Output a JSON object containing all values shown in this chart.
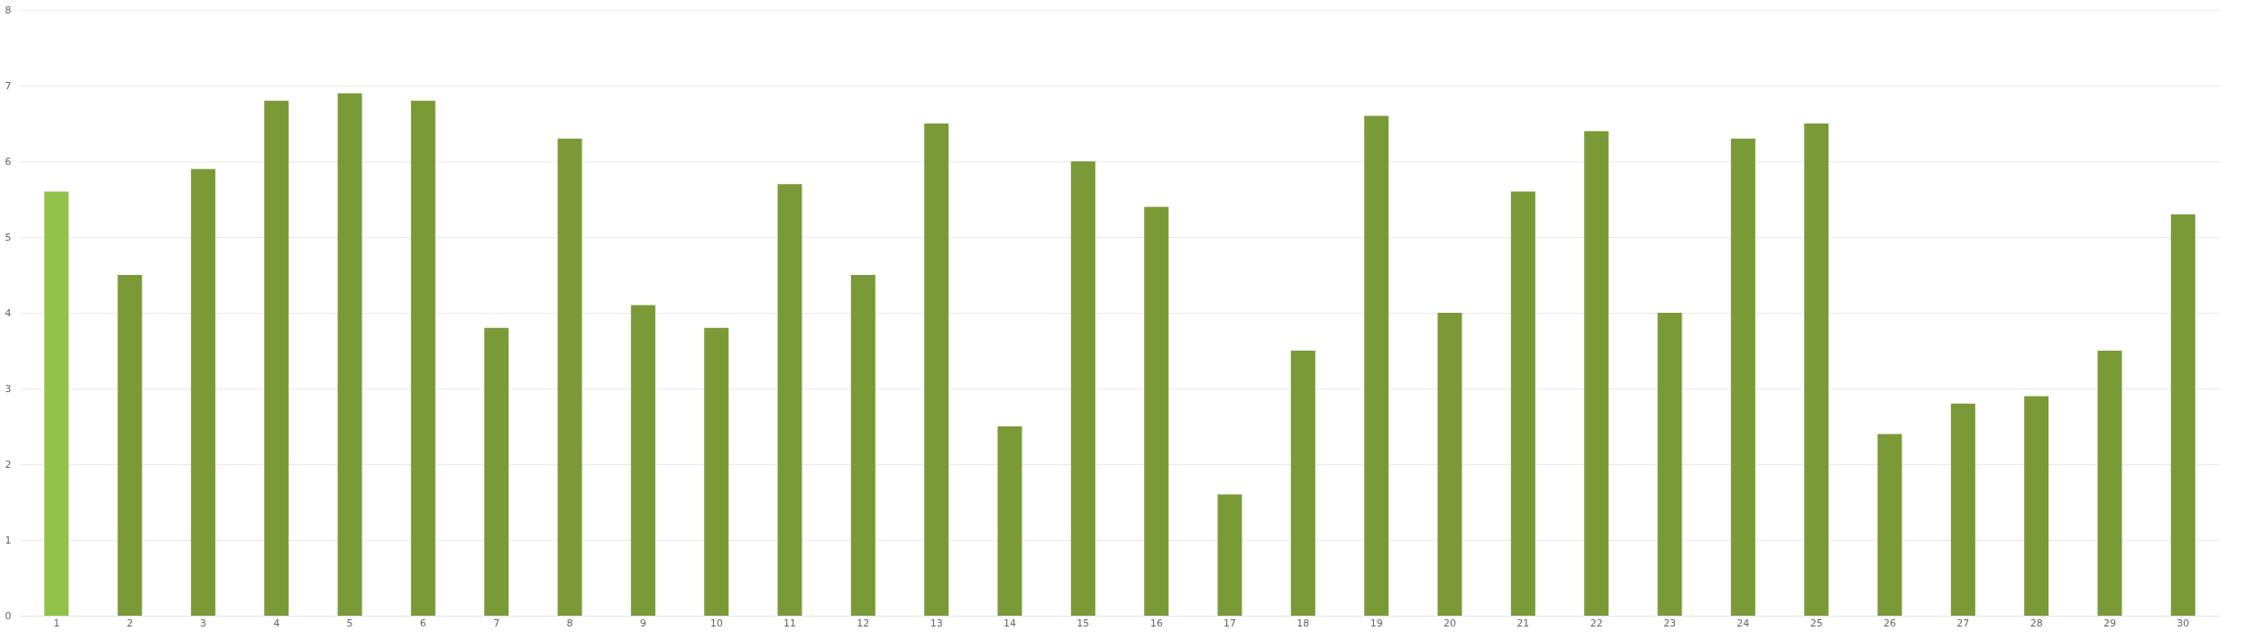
{
  "chart_data": {
    "type": "bar",
    "categories": [
      "1",
      "2",
      "3",
      "4",
      "5",
      "6",
      "7",
      "8",
      "9",
      "10",
      "11",
      "12",
      "13",
      "14",
      "15",
      "16",
      "17",
      "18",
      "19",
      "20",
      "21",
      "22",
      "23",
      "24",
      "25",
      "26",
      "27",
      "28",
      "29",
      "30"
    ],
    "values": [
      5.6,
      4.5,
      5.9,
      6.8,
      6.9,
      6.8,
      3.8,
      6.3,
      4.1,
      3.8,
      5.7,
      4.5,
      6.5,
      2.5,
      6.0,
      5.4,
      1.6,
      3.5,
      6.6,
      4.0,
      5.6,
      6.4,
      4.0,
      6.3,
      6.5,
      2.4,
      2.8,
      2.9,
      3.5,
      5.3
    ],
    "colors": [
      "#92c24a",
      "#7a9a38",
      "#7a9a38",
      "#7a9a38",
      "#7a9a38",
      "#7a9a38",
      "#7a9a38",
      "#7a9a38",
      "#7a9a38",
      "#7a9a38",
      "#7a9a38",
      "#7a9a38",
      "#7a9a38",
      "#7a9a38",
      "#7a9a38",
      "#7a9a38",
      "#7a9a38",
      "#7a9a38",
      "#7a9a38",
      "#7a9a38",
      "#7a9a38",
      "#7a9a38",
      "#7a9a38",
      "#7a9a38",
      "#7a9a38",
      "#7a9a38",
      "#7a9a38",
      "#7a9a38",
      "#7a9a38",
      "#7a9a38"
    ],
    "ylim": [
      0,
      8
    ],
    "yticks": [
      0,
      1,
      2,
      3,
      4,
      5,
      6,
      7,
      8
    ],
    "grid": "y"
  }
}
